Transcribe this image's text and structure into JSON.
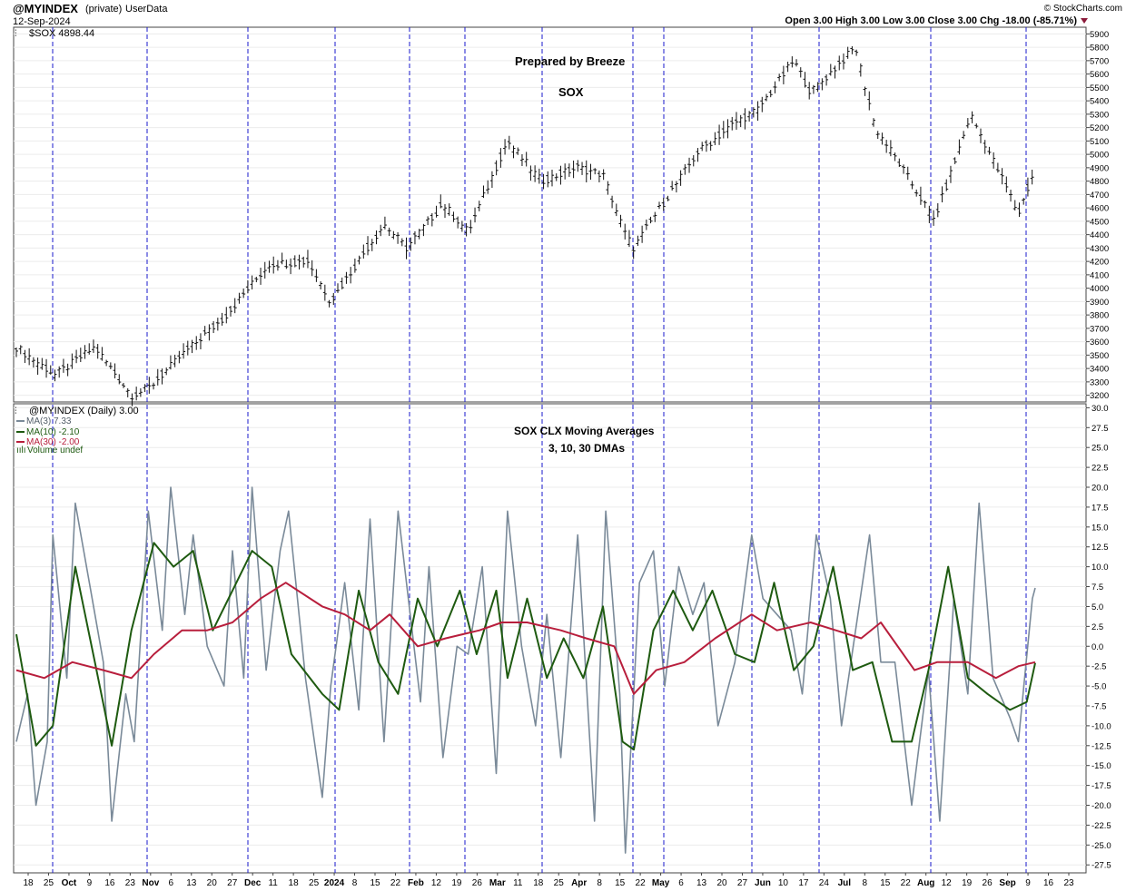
{
  "header": {
    "symbol": "@MYINDEX",
    "privacy": "(private)",
    "datatype": "UserData",
    "date": "12-Sep-2024",
    "credit": "© StockCharts.com",
    "ohlc_text": "Open 3.00  High 3.00  Low 3.00  Close 3.00  Chg -18.00 (-85.71%)"
  },
  "upper_panel": {
    "legend": "$SOX 4898.44",
    "annotation_line1": "Prepared by Breeze",
    "annotation_line2": "SOX"
  },
  "lower_panel": {
    "legend": "@MYINDEX (Daily) 3.00",
    "ma3_label": "MA(3) 7.33",
    "ma10_label": "MA(10) -2.10",
    "ma30_label": "MA(30) -2.00",
    "volume_label": "Volume undef",
    "annotation_line1": "SOX CLX Moving Averages",
    "annotation_line2": "3, 10, 30 DMAs"
  },
  "chart_data": [
    {
      "type": "line",
      "chart_subtype": "ohlc_bar",
      "title": "SOX",
      "ylim": [
        3150,
        5950
      ],
      "yticks": [
        3200,
        3300,
        3400,
        3500,
        3600,
        3700,
        3800,
        3900,
        4000,
        4100,
        4200,
        4300,
        4400,
        4500,
        4600,
        4700,
        4800,
        4900,
        5000,
        5100,
        5200,
        5300,
        5400,
        5500,
        5600,
        5700,
        5800,
        5900
      ],
      "x": [
        "2023-09-15",
        "2023-09-29",
        "2023-10-13",
        "2023-10-26",
        "2023-11-01",
        "2023-11-13",
        "2023-11-28",
        "2023-12-14",
        "2023-12-28",
        "2024-01-05",
        "2024-01-18",
        "2024-01-24",
        "2024-02-01",
        "2024-02-14",
        "2024-02-23",
        "2024-03-08",
        "2024-03-20",
        "2024-04-02",
        "2024-04-11",
        "2024-04-19",
        "2024-04-22",
        "2024-04-30",
        "2024-05-15",
        "2024-05-29",
        "2024-06-05",
        "2024-06-18",
        "2024-06-24",
        "2024-07-10",
        "2024-07-17",
        "2024-07-25",
        "2024-08-07",
        "2024-08-12",
        "2024-08-20",
        "2024-09-03",
        "2024-09-06",
        "2024-09-12"
      ],
      "values": [
        3560,
        3350,
        3560,
        3200,
        3250,
        3500,
        3780,
        4180,
        4200,
        3900,
        4300,
        4480,
        4300,
        4630,
        4420,
        5100,
        4800,
        4900,
        4850,
        4400,
        4300,
        4560,
        5020,
        5250,
        5330,
        5700,
        5460,
        5800,
        5200,
        4950,
        4510,
        4800,
        5300,
        4700,
        4550,
        4898
      ]
    },
    {
      "type": "line",
      "title": "SOX CLX Moving Averages",
      "ylim": [
        -28.5,
        30.5
      ],
      "yticks": [
        -27.5,
        -25.0,
        -22.5,
        -20.0,
        -17.5,
        -15.0,
        -12.5,
        -10.0,
        -7.5,
        -5.0,
        -2.5,
        0.0,
        2.5,
        5.0,
        7.5,
        10.0,
        12.5,
        15.0,
        17.5,
        20.0,
        22.5,
        25.0,
        27.5,
        30.0
      ],
      "series": [
        {
          "name": "MA(3) 7.33",
          "color": "#7a8a99",
          "x": [
            "2023-09-15",
            "2023-09-19",
            "2023-09-22",
            "2023-09-26",
            "2023-09-28",
            "2023-10-03",
            "2023-10-06",
            "2023-10-11",
            "2023-10-16",
            "2023-10-19",
            "2023-10-24",
            "2023-10-27",
            "2023-11-01",
            "2023-11-06",
            "2023-11-09",
            "2023-11-14",
            "2023-11-17",
            "2023-11-22",
            "2023-11-28",
            "2023-12-01",
            "2023-12-05",
            "2023-12-08",
            "2023-12-13",
            "2023-12-18",
            "2023-12-21",
            "2023-12-27",
            "2024-01-02",
            "2024-01-05",
            "2024-01-10",
            "2024-01-15",
            "2024-01-19",
            "2024-01-24",
            "2024-01-29",
            "2024-02-01",
            "2024-02-06",
            "2024-02-09",
            "2024-02-14",
            "2024-02-19",
            "2024-02-23",
            "2024-02-28",
            "2024-03-04",
            "2024-03-08",
            "2024-03-13",
            "2024-03-18",
            "2024-03-22",
            "2024-03-27",
            "2024-04-02",
            "2024-04-08",
            "2024-04-12",
            "2024-04-17",
            "2024-04-19",
            "2024-04-24",
            "2024-04-29",
            "2024-05-03",
            "2024-05-08",
            "2024-05-13",
            "2024-05-17",
            "2024-05-22",
            "2024-05-28",
            "2024-06-03",
            "2024-06-07",
            "2024-06-12",
            "2024-06-17",
            "2024-06-21",
            "2024-06-26",
            "2024-07-01",
            "2024-07-05",
            "2024-07-10",
            "2024-07-15",
            "2024-07-19",
            "2024-07-24",
            "2024-07-30",
            "2024-08-05",
            "2024-08-09",
            "2024-08-14",
            "2024-08-19",
            "2024-08-23",
            "2024-08-28",
            "2024-09-03",
            "2024-09-06",
            "2024-09-11",
            "2024-09-12"
          ],
          "values": [
            -12,
            -6,
            -20,
            -12,
            14,
            -4,
            18,
            8,
            -2,
            -22,
            -6,
            -12,
            17,
            2,
            20,
            4,
            14,
            0,
            -5,
            12,
            -4,
            20,
            -3,
            12,
            17,
            -4,
            -19,
            -5,
            8,
            -8,
            16,
            -12,
            17,
            8,
            -7,
            10,
            -14,
            0,
            -1,
            10,
            -16,
            17,
            0,
            -10,
            4,
            -14,
            14,
            -22,
            17,
            -6,
            -26,
            8,
            12,
            -5,
            10,
            4,
            8,
            -10,
            -2,
            14,
            6,
            4,
            2,
            -6,
            14,
            6,
            -10,
            2,
            14,
            -2,
            -2,
            -20,
            -3,
            -22,
            6,
            -6,
            18,
            -4,
            -9,
            -12,
            6,
            7.33
          ]
        },
        {
          "name": "MA(10) -2.10",
          "color": "#1e5a10",
          "x": [
            "2023-09-15",
            "2023-09-22",
            "2023-09-28",
            "2023-10-06",
            "2023-10-13",
            "2023-10-19",
            "2023-10-26",
            "2023-11-03",
            "2023-11-10",
            "2023-11-17",
            "2023-11-24",
            "2023-12-01",
            "2023-12-08",
            "2023-12-15",
            "2023-12-22",
            "2024-01-02",
            "2024-01-08",
            "2024-01-15",
            "2024-01-22",
            "2024-01-29",
            "2024-02-05",
            "2024-02-12",
            "2024-02-20",
            "2024-02-26",
            "2024-03-04",
            "2024-03-08",
            "2024-03-15",
            "2024-03-22",
            "2024-03-28",
            "2024-04-04",
            "2024-04-11",
            "2024-04-18",
            "2024-04-22",
            "2024-04-29",
            "2024-05-06",
            "2024-05-13",
            "2024-05-20",
            "2024-05-28",
            "2024-06-04",
            "2024-06-11",
            "2024-06-18",
            "2024-06-25",
            "2024-07-02",
            "2024-07-09",
            "2024-07-16",
            "2024-07-23",
            "2024-07-30",
            "2024-08-05",
            "2024-08-12",
            "2024-08-19",
            "2024-08-26",
            "2024-09-03",
            "2024-09-09",
            "2024-09-12"
          ],
          "values": [
            1.5,
            -12.5,
            -10,
            10,
            -2,
            -12.5,
            2,
            13,
            10,
            12,
            2,
            7,
            12,
            10,
            -1,
            -6,
            -8,
            7,
            -2,
            -6,
            6,
            0,
            7,
            -1,
            7,
            -4,
            6,
            -4,
            1,
            -4,
            5,
            -12,
            -13,
            2,
            7,
            2,
            7,
            -1,
            -2,
            8,
            -3,
            0,
            10,
            -3,
            -2,
            -12,
            -12,
            -3,
            10,
            -4,
            -6,
            -8,
            -7,
            -2.1
          ]
        },
        {
          "name": "MA(30) -2.00",
          "color": "#b81e3c",
          "x": [
            "2023-09-15",
            "2023-09-25",
            "2023-10-05",
            "2023-10-16",
            "2023-10-26",
            "2023-11-03",
            "2023-11-13",
            "2023-11-22",
            "2023-12-01",
            "2023-12-11",
            "2023-12-20",
            "2024-01-02",
            "2024-01-10",
            "2024-01-19",
            "2024-01-26",
            "2024-02-05",
            "2024-02-15",
            "2024-02-27",
            "2024-03-06",
            "2024-03-15",
            "2024-03-27",
            "2024-04-05",
            "2024-04-15",
            "2024-04-22",
            "2024-04-30",
            "2024-05-10",
            "2024-05-21",
            "2024-06-03",
            "2024-06-12",
            "2024-06-24",
            "2024-07-03",
            "2024-07-12",
            "2024-07-19",
            "2024-07-31",
            "2024-08-08",
            "2024-08-19",
            "2024-08-29",
            "2024-09-06",
            "2024-09-12"
          ],
          "values": [
            -3,
            -4,
            -2,
            -3,
            -4,
            -1,
            2,
            2,
            3,
            6,
            8,
            5,
            4,
            2,
            4,
            0,
            1,
            2,
            3,
            3,
            2,
            1,
            0,
            -6,
            -3,
            -2,
            1,
            4,
            2,
            3,
            2,
            1,
            3,
            -3,
            -2,
            -2,
            -4,
            -2.5,
            -2.0
          ]
        }
      ]
    }
  ],
  "x_axis": {
    "labels": [
      "18",
      "25",
      "Oct",
      "9",
      "16",
      "23",
      "Nov",
      "6",
      "13",
      "20",
      "27",
      "Dec",
      "11",
      "18",
      "25",
      "2024",
      "8",
      "15",
      "22",
      "Feb",
      "12",
      "19",
      "26",
      "Mar",
      "11",
      "18",
      "25",
      "Apr",
      "8",
      "15",
      "22",
      "May",
      "6",
      "13",
      "20",
      "27",
      "Jun",
      "10",
      "17",
      "24",
      "Jul",
      "8",
      "15",
      "22",
      "Aug",
      "12",
      "19",
      "26",
      "Sep",
      "9",
      "16",
      "23"
    ]
  }
}
